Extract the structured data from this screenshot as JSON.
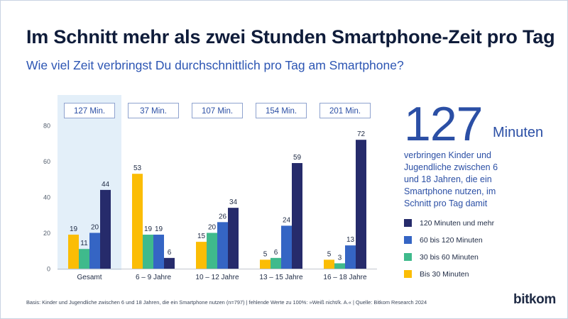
{
  "header": {
    "title": "Im Schnitt mehr als zwei Stunden Smartphone-Zeit pro Tag",
    "subtitle": "Wie viel Zeit verbringst Du durchschnittlich pro Tag am Smartphone?"
  },
  "highlight": {
    "number": "127",
    "unit": "Minuten",
    "description": "verbringen Kinder und Jugendliche zwischen 6 und 18 Jahren, die ein Smartphone nutzen, im Schnitt pro Tag damit"
  },
  "footnote": "Basis: Kinder und Jugendliche zwischen 6 und 18 Jahren, die ein Smartphone nutzen (n=797) | fehlende Werte zu 100%: »Weiß nicht/k. A.« | Quelle: Bitkom Research 2024",
  "logo": "bitkom",
  "colors": {
    "bis30": "#fbbd05",
    "30bis60": "#3fba8c",
    "60bis120": "#3565c4",
    "120plus": "#262b6b",
    "highlight_bg": "#e3eff9",
    "accent": "#2b4fa5"
  },
  "chart_data": {
    "type": "bar",
    "categories": [
      "Gesamt",
      "6 – 9 Jahre",
      "10 – 12 Jahre",
      "13 – 15 Jahre",
      "16 – 18 Jahre"
    ],
    "averages": [
      "127 Min.",
      "37 Min.",
      "107 Min.",
      "154 Min.",
      "201 Min."
    ],
    "series": [
      {
        "name": "Bis 30 Minuten",
        "color": "#fbbd05",
        "values": [
          19,
          53,
          15,
          5,
          5
        ]
      },
      {
        "name": "30 bis 60 Minuten",
        "color": "#3fba8c",
        "values": [
          11,
          19,
          20,
          6,
          3
        ]
      },
      {
        "name": "60 bis 120 Minuten",
        "color": "#3565c4",
        "values": [
          20,
          19,
          26,
          24,
          13
        ]
      },
      {
        "name": "120 Minuten und mehr",
        "color": "#262b6b",
        "values": [
          44,
          6,
          34,
          59,
          72
        ]
      }
    ],
    "legend_order": [
      "120 Minuten und mehr",
      "60 bis 120 Minuten",
      "30 bis 60 Minuten",
      "Bis 30 Minuten"
    ],
    "y_ticks": [
      0,
      20,
      40,
      60,
      80
    ],
    "ylim": [
      0,
      80
    ],
    "highlighted_category": "Gesamt",
    "legend_position": "right"
  }
}
